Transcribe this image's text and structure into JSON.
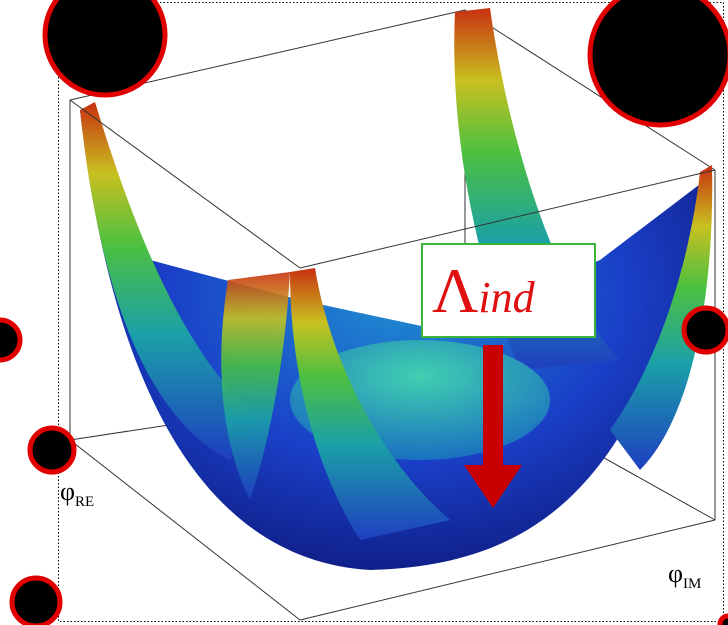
{
  "annotation": {
    "symbol": "Λ",
    "subscript": "ind"
  },
  "axes": {
    "x": {
      "symbol": "φ",
      "subscript": "RE"
    },
    "y": {
      "symbol": "φ",
      "subscript": "IM"
    }
  }
}
